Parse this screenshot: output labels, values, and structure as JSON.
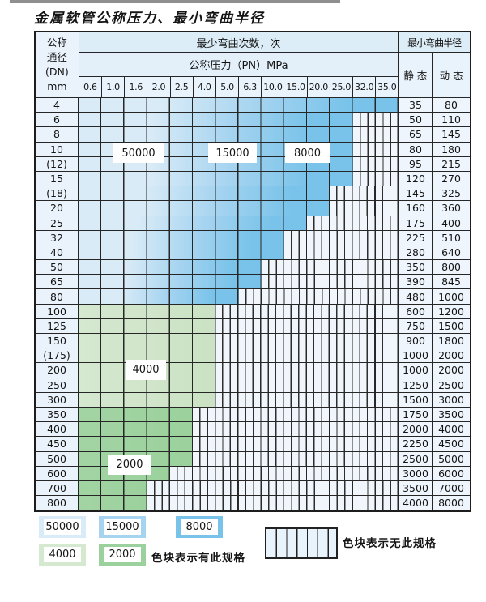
{
  "title": "金属软管公称压力、最小弯曲半径",
  "header": {
    "dn_lines": [
      "公称",
      "通径",
      "(DN)",
      "mm"
    ],
    "min_bend_cycles": "最少弯曲次数，次",
    "nominal_pressure": "公称压力（PN）MPa",
    "min_bend_radius": "最小弯曲半径",
    "static_label": "静 态",
    "dynamic_label": "动 态",
    "pn_values": [
      "0.6",
      "1.0",
      "1.6",
      "2.0",
      "2.5",
      "4.0",
      "5.0",
      "6.3",
      "10.0",
      "15.0",
      "20.0",
      "25.0",
      "32.0",
      "35.0"
    ]
  },
  "rows": [
    {
      "dn": "4",
      "available_pn_count": 14,
      "band": "blue",
      "static": "35",
      "dynamic": "80"
    },
    {
      "dn": "6",
      "available_pn_count": 12,
      "band": "blue",
      "static": "50",
      "dynamic": "110"
    },
    {
      "dn": "8",
      "available_pn_count": 12,
      "band": "blue",
      "static": "65",
      "dynamic": "145"
    },
    {
      "dn": "10",
      "available_pn_count": 12,
      "band": "blue",
      "static": "80",
      "dynamic": "180"
    },
    {
      "dn": "(12)",
      "available_pn_count": 12,
      "band": "blue",
      "static": "95",
      "dynamic": "215"
    },
    {
      "dn": "15",
      "available_pn_count": 12,
      "band": "blue",
      "static": "120",
      "dynamic": "270"
    },
    {
      "dn": "(18)",
      "available_pn_count": 11,
      "band": "blue",
      "static": "145",
      "dynamic": "325"
    },
    {
      "dn": "20",
      "available_pn_count": 11,
      "band": "blue",
      "static": "160",
      "dynamic": "360"
    },
    {
      "dn": "25",
      "available_pn_count": 10,
      "band": "blue",
      "static": "175",
      "dynamic": "400"
    },
    {
      "dn": "32",
      "available_pn_count": 9,
      "band": "blue",
      "static": "225",
      "dynamic": "510"
    },
    {
      "dn": "40",
      "available_pn_count": 9,
      "band": "blue",
      "static": "280",
      "dynamic": "640"
    },
    {
      "dn": "50",
      "available_pn_count": 8,
      "band": "blue",
      "static": "350",
      "dynamic": "800"
    },
    {
      "dn": "65",
      "available_pn_count": 8,
      "band": "blue",
      "static": "390",
      "dynamic": "845"
    },
    {
      "dn": "80",
      "available_pn_count": 7,
      "band": "blue",
      "static": "480",
      "dynamic": "1000"
    },
    {
      "dn": "100",
      "available_pn_count": 6,
      "band": "green-4000",
      "static": "600",
      "dynamic": "1200"
    },
    {
      "dn": "125",
      "available_pn_count": 6,
      "band": "green-4000",
      "static": "750",
      "dynamic": "1500"
    },
    {
      "dn": "150",
      "available_pn_count": 6,
      "band": "green-4000",
      "static": "900",
      "dynamic": "1800"
    },
    {
      "dn": "(175)",
      "available_pn_count": 6,
      "band": "green-4000",
      "static": "1000",
      "dynamic": "2000"
    },
    {
      "dn": "200",
      "available_pn_count": 6,
      "band": "green-4000",
      "static": "1000",
      "dynamic": "2000"
    },
    {
      "dn": "250",
      "available_pn_count": 6,
      "band": "green-4000",
      "static": "1250",
      "dynamic": "2500"
    },
    {
      "dn": "300",
      "available_pn_count": 6,
      "band": "green-4000",
      "static": "1500",
      "dynamic": "3000"
    },
    {
      "dn": "350",
      "available_pn_count": 5,
      "band": "green-2000",
      "static": "1750",
      "dynamic": "3500"
    },
    {
      "dn": "400",
      "available_pn_count": 5,
      "band": "green-2000",
      "static": "2000",
      "dynamic": "4000"
    },
    {
      "dn": "450",
      "available_pn_count": 5,
      "band": "green-2000",
      "static": "2250",
      "dynamic": "4500"
    },
    {
      "dn": "500",
      "available_pn_count": 5,
      "band": "green-2000",
      "static": "2500",
      "dynamic": "5000"
    },
    {
      "dn": "600",
      "available_pn_count": 4,
      "band": "green-2000",
      "static": "3000",
      "dynamic": "6000"
    },
    {
      "dn": "700",
      "available_pn_count": 3,
      "band": "green-2000",
      "static": "3500",
      "dynamic": "7000"
    },
    {
      "dn": "800",
      "available_pn_count": 3,
      "band": "green-2000",
      "static": "4000",
      "dynamic": "8000"
    }
  ],
  "zone_labels": [
    "50000",
    "15000",
    "8000",
    "4000",
    "2000"
  ],
  "legend": {
    "swatches": [
      {
        "label": "50000",
        "color_key": "cycles_50000"
      },
      {
        "label": "15000",
        "color_key": "cycles_15000"
      },
      {
        "label": "8000",
        "color_key": "cycles_8000"
      },
      {
        "label": "4000",
        "color_key": "cycles_4000"
      },
      {
        "label": "2000",
        "color_key": "cycles_2000"
      }
    ],
    "has_spec_note": "色块表示有此规格",
    "no_spec_note": "色块表示无此规格"
  },
  "colors": {
    "cycles_50000": "#d9ebf7",
    "cycles_15000": "#a6d4f0",
    "cycles_8000": "#79c3ea",
    "cycles_4000": "#d5e8d0",
    "cycles_2000": "#9bd19c",
    "hatch_fill": "#f0f6fb",
    "grid_line": "#262626"
  }
}
